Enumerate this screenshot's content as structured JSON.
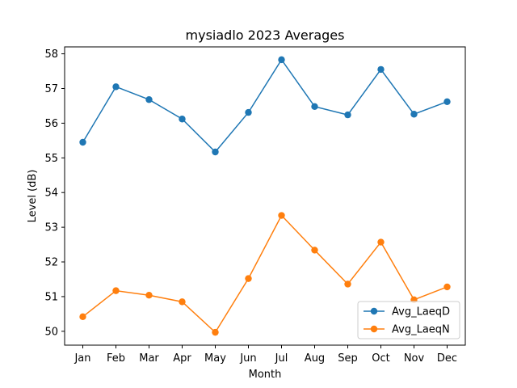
{
  "chart_data": {
    "type": "line",
    "title": "mysiadlo 2023 Averages",
    "xlabel": "Month",
    "ylabel": "Level (dB)",
    "categories": [
      "Jan",
      "Feb",
      "Mar",
      "Apr",
      "May",
      "Jun",
      "Jul",
      "Aug",
      "Sep",
      "Oct",
      "Nov",
      "Dec"
    ],
    "ylim": [
      49.6,
      58.2
    ],
    "yticks": [
      50,
      51,
      52,
      53,
      54,
      55,
      56,
      57,
      58
    ],
    "grid": false,
    "legend_position": "lower-right",
    "series": [
      {
        "name": "Avg_LaeqD",
        "color": "#1f77b4",
        "values": [
          55.45,
          57.05,
          56.68,
          56.12,
          55.17,
          56.31,
          57.83,
          56.48,
          56.24,
          57.55,
          56.26,
          56.62
        ]
      },
      {
        "name": "Avg_LaeqN",
        "color": "#ff7f0e",
        "values": [
          50.42,
          51.17,
          51.04,
          50.85,
          49.97,
          51.52,
          53.34,
          52.34,
          51.36,
          52.57,
          50.91,
          51.28
        ]
      }
    ]
  }
}
